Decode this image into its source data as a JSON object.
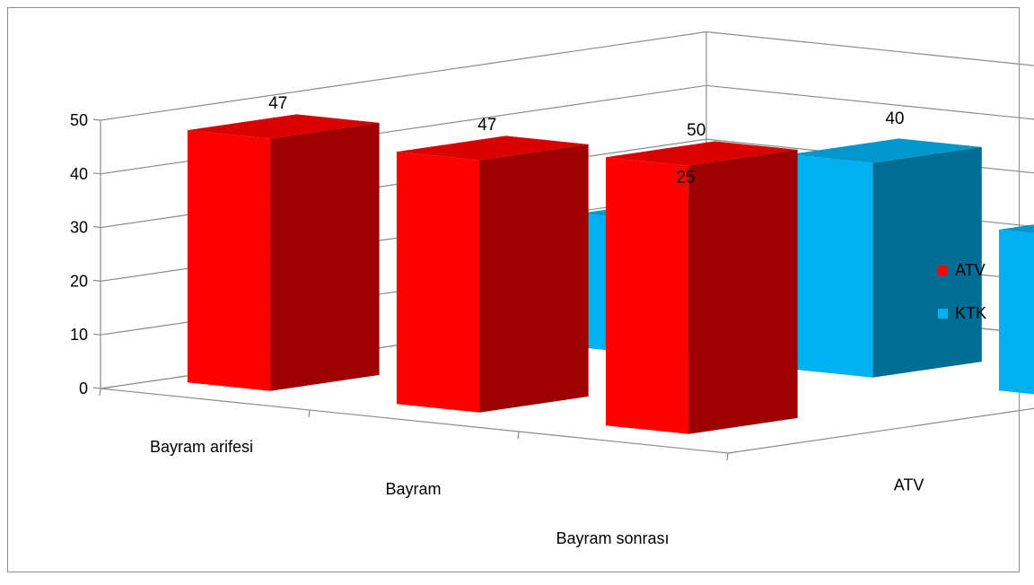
{
  "chart_data": {
    "type": "bar",
    "variant": "3d-column",
    "title": "",
    "xlabel": "",
    "ylabel": "",
    "ylim": [
      0,
      50
    ],
    "yticks": [
      0,
      10,
      20,
      30,
      40,
      50
    ],
    "grid": true,
    "legend": "right",
    "categories": [
      "Bayram arifesi",
      "Bayram",
      "Bayram sonrası"
    ],
    "depth_labels": [
      "ATV",
      "KTK"
    ],
    "series": [
      {
        "name": "ATV",
        "color": "#ff0000",
        "values": [
          47,
          47,
          50
        ]
      },
      {
        "name": "KTK",
        "color": "#00b0f0",
        "values": [
          25,
          40,
          30
        ]
      }
    ]
  }
}
